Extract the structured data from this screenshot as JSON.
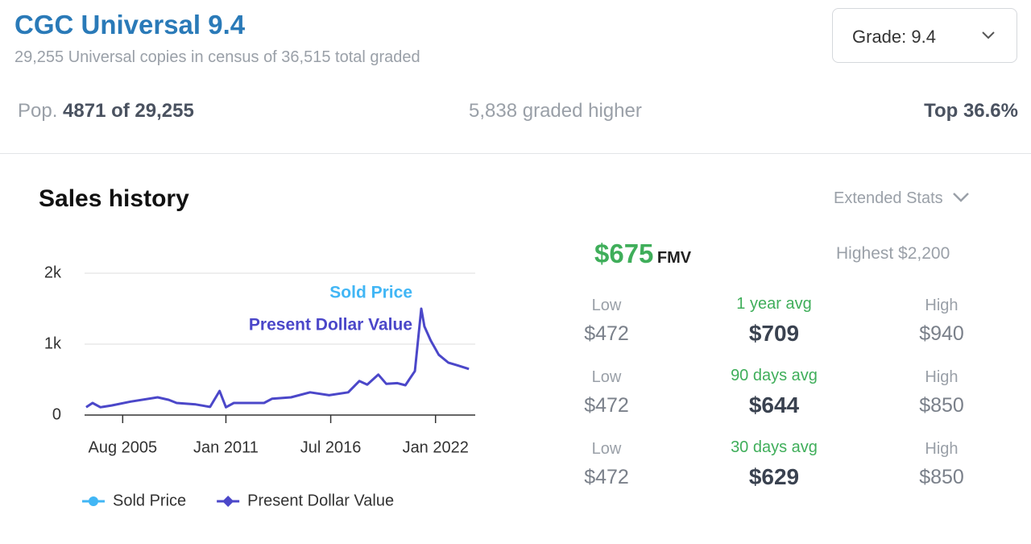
{
  "header": {
    "title": "CGC Universal 9.4",
    "subtitle": "29,255 Universal copies in census of 36,515 total graded",
    "grade_select": "Grade: 9.4"
  },
  "population": {
    "pop_label": "Pop.",
    "pop_value": "4871 of 29,255",
    "graded_higher": "5,838 graded higher",
    "top": "Top 36.6%"
  },
  "sales": {
    "title": "Sales history",
    "extended_stats": "Extended Stats",
    "fmv": {
      "value": "$675",
      "label": "FMV",
      "highest": "Highest $2,200"
    },
    "rows": [
      {
        "low_label": "Low",
        "low": "$472",
        "avg_label": "1 year avg",
        "avg": "$709",
        "high_label": "High",
        "high": "$940"
      },
      {
        "low_label": "Low",
        "low": "$472",
        "avg_label": "90 days avg",
        "avg": "$644",
        "high_label": "High",
        "high": "$850"
      },
      {
        "low_label": "Low",
        "low": "$472",
        "avg_label": "30 days avg",
        "avg": "$629",
        "high_label": "High",
        "high": "$850"
      }
    ]
  },
  "chart_data": {
    "type": "line",
    "x": [
      "2003-09",
      "2004-01",
      "2004-06",
      "2005-01",
      "2006-01",
      "2007-06",
      "2008-01",
      "2008-06",
      "2009-06",
      "2010-03",
      "2010-09",
      "2011-01",
      "2011-06",
      "2013-01",
      "2013-06",
      "2014-06",
      "2015-06",
      "2016-06",
      "2017-06",
      "2018-01",
      "2018-06",
      "2019-01",
      "2019-06",
      "2020-01",
      "2020-06",
      "2020-12",
      "2021-04",
      "2021-06",
      "2021-10",
      "2022-03",
      "2022-09",
      "2023-03",
      "2023-10"
    ],
    "series": [
      {
        "name": "Sold Price",
        "color": "#41b6f5",
        "values": [
          110,
          170,
          110,
          135,
          190,
          250,
          215,
          170,
          150,
          115,
          340,
          110,
          170,
          170,
          230,
          250,
          320,
          280,
          320,
          480,
          430,
          570,
          440,
          450,
          420,
          620,
          1500,
          1250,
          1050,
          850,
          740,
          700,
          650
        ]
      },
      {
        "name": "Present Dollar Value",
        "color": "#4b47c9",
        "values": [
          110,
          170,
          110,
          135,
          190,
          250,
          215,
          170,
          150,
          115,
          340,
          110,
          170,
          170,
          230,
          250,
          320,
          280,
          320,
          480,
          430,
          570,
          440,
          450,
          420,
          620,
          1500,
          1250,
          1050,
          850,
          740,
          700,
          650
        ]
      }
    ],
    "xlim": [
      "2003-08",
      "2024-02"
    ],
    "xticks": [
      {
        "value": "2005-08",
        "label": "Aug 2005"
      },
      {
        "value": "2011-01",
        "label": "Jan 2011"
      },
      {
        "value": "2016-07",
        "label": "Jul 2016"
      },
      {
        "value": "2022-01",
        "label": "Jan 2022"
      }
    ],
    "ylim": [
      0,
      2000
    ],
    "yticks": [
      0,
      {
        "value": 1000,
        "label": "1k"
      },
      {
        "value": 2000,
        "label": "2k"
      }
    ],
    "grid": true
  }
}
